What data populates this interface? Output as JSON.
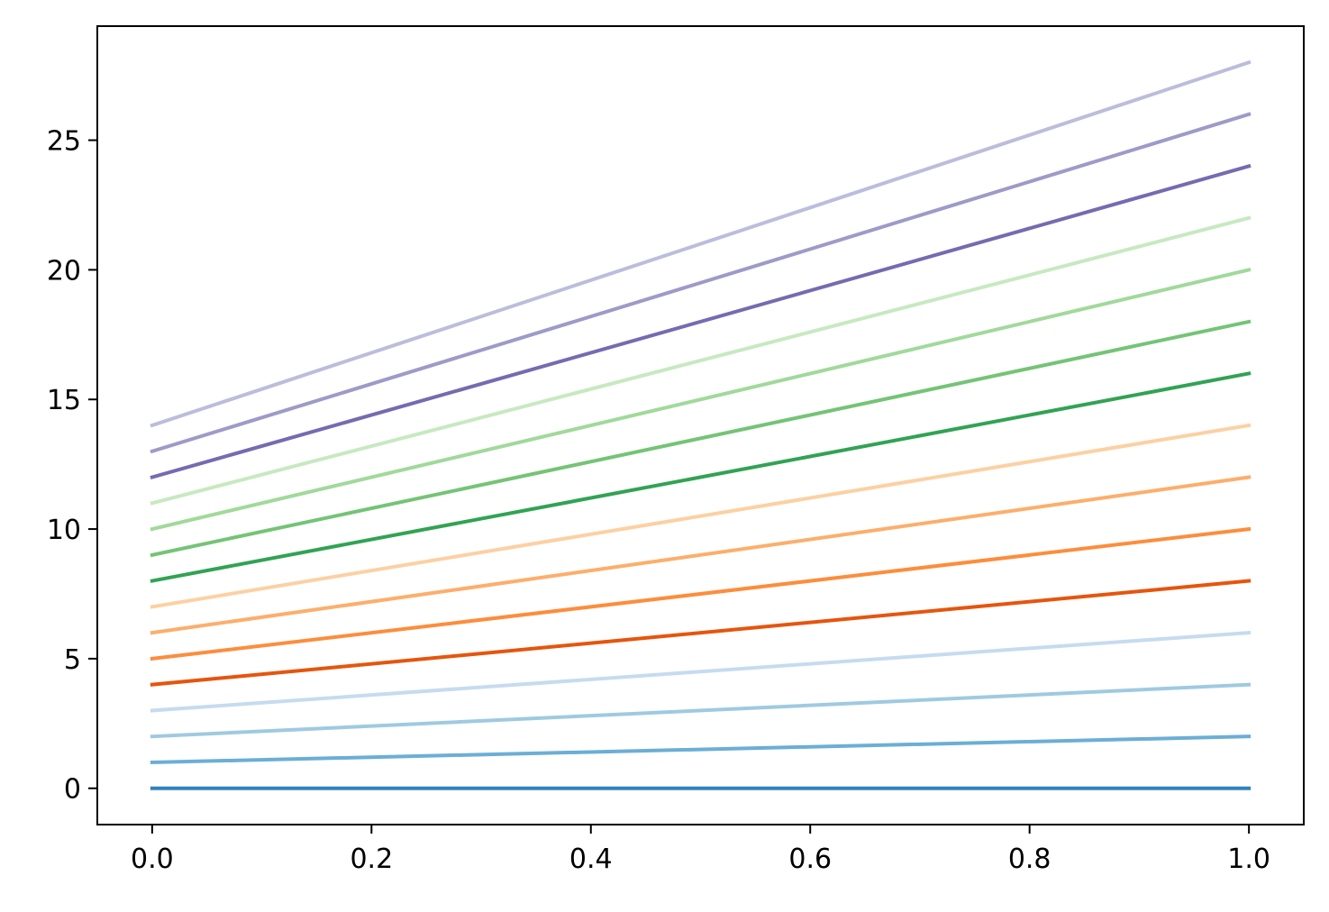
{
  "chart_data": {
    "type": "line",
    "title": "",
    "xlabel": "",
    "ylabel": "",
    "xlim": [
      -0.05,
      1.05
    ],
    "ylim": [
      -1.4,
      29.4
    ],
    "x_ticks": [
      0.0,
      0.2,
      0.4,
      0.6,
      0.8,
      1.0
    ],
    "x_tick_labels": [
      "0.0",
      "0.2",
      "0.4",
      "0.6",
      "0.8",
      "1.0"
    ],
    "y_ticks": [
      0,
      5,
      10,
      15,
      20,
      25
    ],
    "y_tick_labels": [
      "0",
      "5",
      "10",
      "15",
      "20",
      "25"
    ],
    "grid": false,
    "legend": "none",
    "x": [
      0.0,
      1.0
    ],
    "series": [
      {
        "color": "#3182bd",
        "values": [
          0,
          0
        ]
      },
      {
        "color": "#6baed6",
        "values": [
          1,
          2
        ]
      },
      {
        "color": "#9ecae1",
        "values": [
          2,
          4
        ]
      },
      {
        "color": "#c6dbef",
        "values": [
          3,
          6
        ]
      },
      {
        "color": "#e6550d",
        "values": [
          4,
          8
        ]
      },
      {
        "color": "#fd8d3c",
        "values": [
          5,
          10
        ]
      },
      {
        "color": "#fdae6b",
        "values": [
          6,
          12
        ]
      },
      {
        "color": "#fdd0a2",
        "values": [
          7,
          14
        ]
      },
      {
        "color": "#31a354",
        "values": [
          8,
          16
        ]
      },
      {
        "color": "#74c476",
        "values": [
          9,
          18
        ]
      },
      {
        "color": "#a1d99b",
        "values": [
          10,
          20
        ]
      },
      {
        "color": "#c7e9c0",
        "values": [
          11,
          22
        ]
      },
      {
        "color": "#756bb1",
        "values": [
          12,
          24
        ]
      },
      {
        "color": "#9e9ac8",
        "values": [
          13,
          26
        ]
      },
      {
        "color": "#bcbddc",
        "values": [
          14,
          28
        ]
      }
    ]
  }
}
